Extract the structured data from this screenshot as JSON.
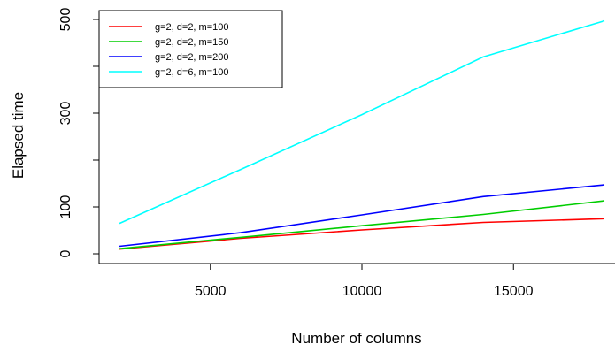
{
  "chart_data": {
    "type": "line",
    "title": "",
    "xlabel": "Number of columns",
    "ylabel": "Elapsed time",
    "xlim": [
      2000,
      18000
    ],
    "ylim": [
      0,
      500
    ],
    "x_ticks": [
      5000,
      10000,
      15000
    ],
    "x_tick_labels": [
      "5000",
      "10000",
      "15000"
    ],
    "y_ticks": [
      0,
      100,
      200,
      300,
      400,
      500
    ],
    "y_tick_labels": [
      "0",
      "100",
      "",
      "300",
      "",
      "500"
    ],
    "grid": false,
    "legend_position": "top-left",
    "x": [
      2000,
      6000,
      10000,
      14000,
      18000
    ],
    "series": [
      {
        "name": "g=2, d=2, m=100",
        "color": "#ff0000",
        "values": [
          10,
          33,
          51,
          67,
          75
        ]
      },
      {
        "name": "g=2, d=2, m=150",
        "color": "#00cd00",
        "values": [
          11,
          35,
          60,
          84,
          113
        ]
      },
      {
        "name": "g=2, d=2, m=200",
        "color": "#0000ff",
        "values": [
          16,
          45,
          83,
          122,
          147
        ]
      },
      {
        "name": "g=2, d=6, m=100",
        "color": "#00ffff",
        "values": [
          65,
          180,
          297,
          420,
          497
        ]
      }
    ]
  }
}
